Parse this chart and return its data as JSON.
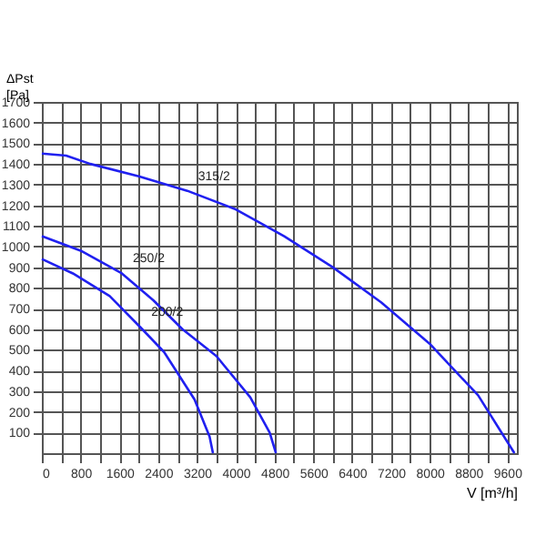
{
  "chart_data": {
    "type": "line",
    "xlabel": "V [m³/h]",
    "ylabel": "ΔPst\n[Pa]",
    "xlim": [
      0,
      9800
    ],
    "ylim": [
      0,
      1700
    ],
    "xticks": [
      0,
      {
        "value": 400,
        "label": null
      },
      800,
      {
        "value": 1200,
        "label": null
      },
      1600,
      {
        "value": 2000,
        "label": null
      },
      2400,
      {
        "value": 2800,
        "label": null
      },
      3200,
      {
        "value": 3600,
        "label": null
      },
      4000,
      {
        "value": 4400,
        "label": null
      },
      4800,
      {
        "value": 5200,
        "label": null
      },
      5600,
      {
        "value": 6000,
        "label": null
      },
      6400,
      {
        "value": 6800,
        "label": null
      },
      7200,
      {
        "value": 7600,
        "label": null
      },
      8000,
      {
        "value": 8400,
        "label": null
      },
      8800,
      {
        "value": 9200,
        "label": null
      },
      9600
    ],
    "yticks": [
      100,
      200,
      300,
      400,
      500,
      600,
      700,
      800,
      900,
      1000,
      1100,
      1200,
      1300,
      1400,
      1500,
      1600,
      1700
    ],
    "grid": true,
    "marker": "none",
    "line_style": "solid",
    "series": [
      {
        "color": "#2020f0",
        "x": [
          0,
          500,
          1000,
          2000,
          3000,
          4000,
          5000,
          6000,
          7000,
          8000,
          9000,
          9750
        ],
        "values": [
          1450,
          1440,
          1400,
          1340,
          1270,
          1180,
          1050,
          900,
          730,
          530,
          280,
          0
        ]
      },
      {
        "color": "#2020f0",
        "x": [
          0,
          800,
          1650,
          2300,
          2900,
          3600,
          4300,
          4700,
          4830
        ],
        "values": [
          1050,
          980,
          870,
          740,
          600,
          470,
          270,
          100,
          0
        ]
      },
      {
        "color": "#2020f0",
        "x": [
          0,
          640,
          1400,
          2030,
          2520,
          3150,
          3460,
          3530
        ],
        "values": [
          940,
          870,
          760,
          610,
          490,
          260,
          80,
          0
        ]
      }
    ],
    "annotations": [
      {
        "text": "315/2",
        "x": 3000,
        "y": 1270
      },
      {
        "text": "250/2",
        "x": 1650,
        "y": 870
      },
      {
        "text": "200/2",
        "x": 2030,
        "y": 610
      }
    ]
  }
}
